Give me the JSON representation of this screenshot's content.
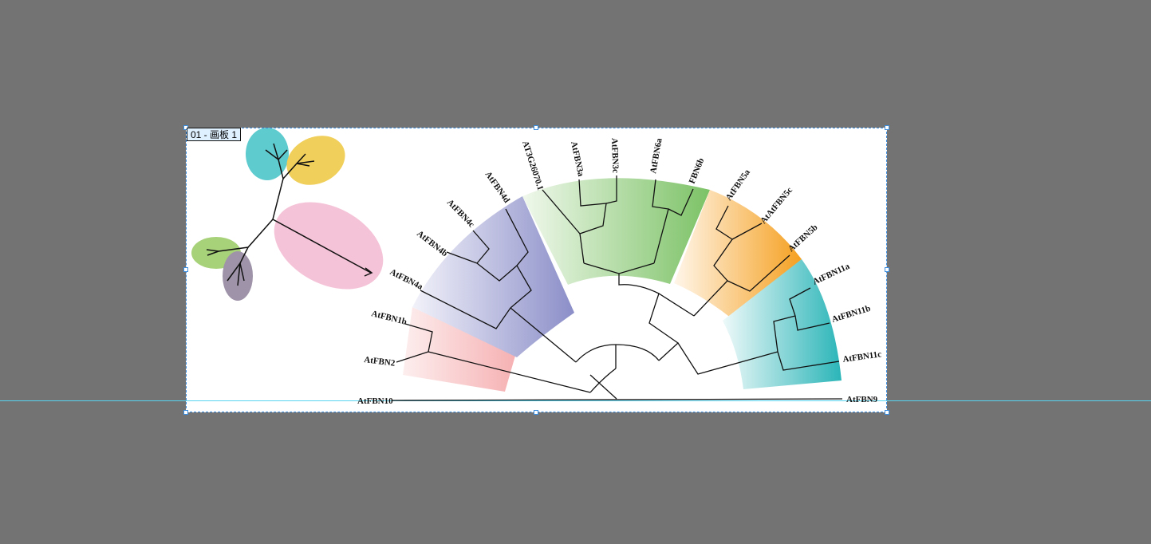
{
  "artboard": {
    "label": "01 - 画板 1"
  },
  "colors": {
    "workspace": "#737373",
    "selection": "#3b8de0",
    "guide": "#56d4f0",
    "clade_pink": "#f5a3a5",
    "clade_purple": "#8b8ec8",
    "clade_green": "#7cc266",
    "clade_orange": "#f5a623",
    "clade_teal": "#2bb5b8",
    "leaf_cyan": "#5ecbcf",
    "leaf_yellow": "#f0cf5a",
    "leaf_pink": "#f5c3d7",
    "leaf_green": "#a8d27a",
    "leaf_purple": "#9e93a8"
  },
  "tree": {
    "taxa": {
      "AtFBN10": "AtFBN10",
      "AtFBN2": "AtFBN2",
      "AtFBN1b": "AtFBN1b",
      "AtFBN4a": "AtFBN4a",
      "AtFBN4b": "AtFBN4b",
      "AtFBN4c": "AtFBN4c",
      "AtFBN4d": "AtFBN4d",
      "AT3G26070_1": "AT3G26070.1",
      "AtFBN3a": "AtFBN3a",
      "AtFBN3c": "AtFBN3c",
      "AtFBN6a": "AtFBN6a",
      "FBN6b": "FBN6b",
      "AtFBN5a": "AtFBN5a",
      "AtAtFBN5c": "AtAtFBN5c",
      "AtFBN5b": "AtFBN5b",
      "AtFBN11a": "AtFBN11a",
      "AtFBN11b": "AtFBN11b",
      "AtFBN11c": "AtFBN11c",
      "AtFBN9": "AtFBN9"
    }
  }
}
